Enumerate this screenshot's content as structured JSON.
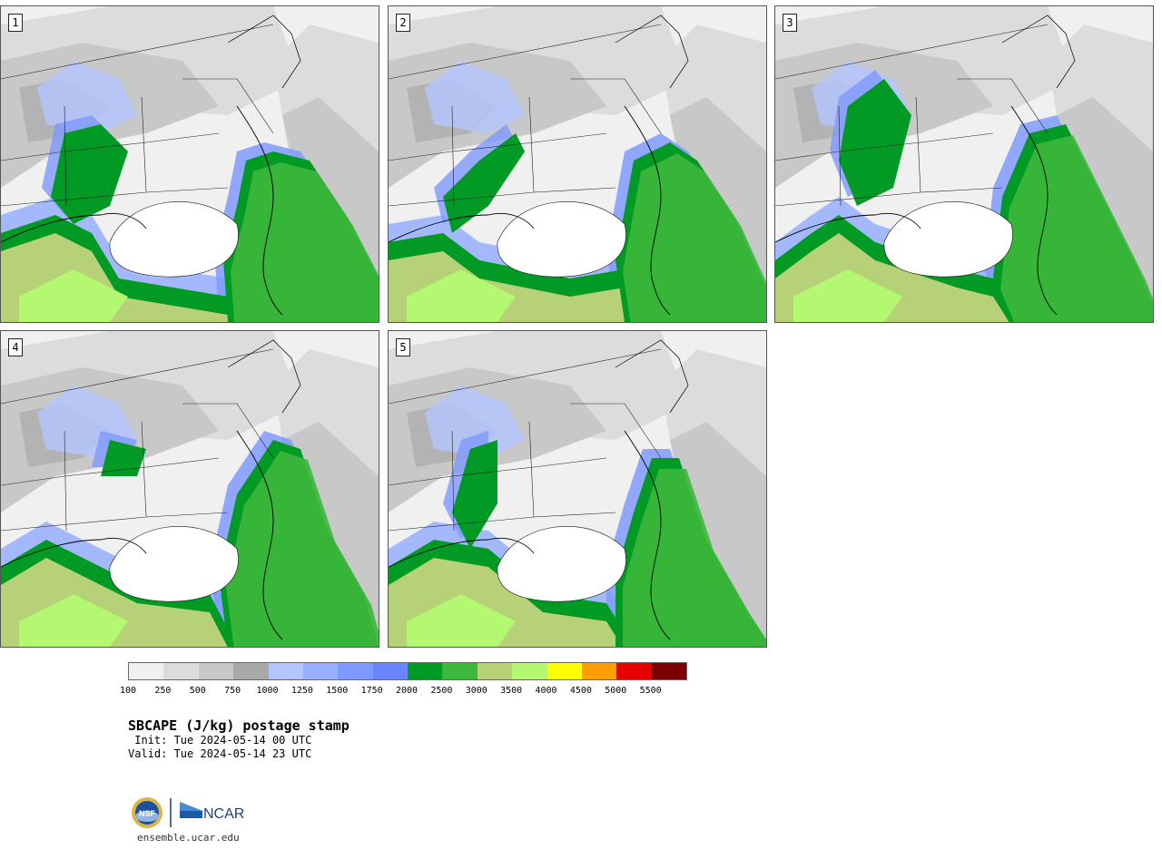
{
  "panels": [
    {
      "label": "1"
    },
    {
      "label": "2"
    },
    {
      "label": "3"
    },
    {
      "label": "4"
    },
    {
      "label": "5"
    }
  ],
  "colorbar": {
    "colors": [
      "#f0f0f0",
      "#dcdcdc",
      "#c8c8c8",
      "#a9a9a9",
      "#b3c6ff",
      "#97afff",
      "#8099ff",
      "#6b85ff",
      "#009a24",
      "#3cb83c",
      "#b6d178",
      "#b3f870",
      "#ffff00",
      "#ff9e00",
      "#e60000",
      "#7a0000"
    ],
    "ticks": [
      "100",
      "250",
      "500",
      "750",
      "1000",
      "1250",
      "1500",
      "1750",
      "2000",
      "2500",
      "3000",
      "3500",
      "4000",
      "4500",
      "5000",
      "5500"
    ]
  },
  "title": "SBCAPE (J/kg) postage stamp",
  "init_line": " Init: Tue 2024-05-14 00 UTC",
  "valid_line": "Valid: Tue 2024-05-14 23 UTC",
  "logos": {
    "nsf": "NSF",
    "ncar": "NCAR"
  },
  "url": "ensemble.ucar.edu"
}
